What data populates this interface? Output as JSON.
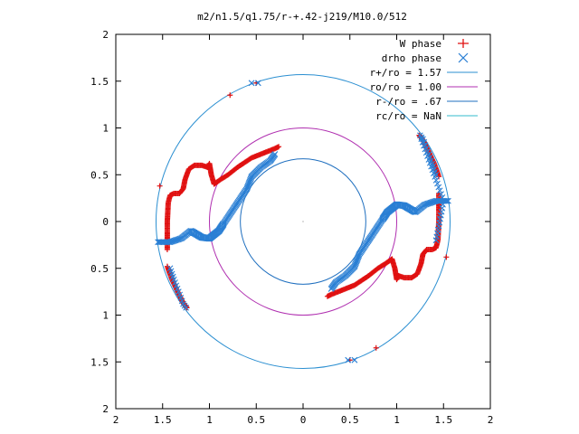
{
  "chart_data": {
    "type": "scatter",
    "title": "m2/n1.5/q1.75/r-+.42-j219/M10.0/512",
    "xlabel": "",
    "ylabel": "",
    "xlim": [
      -2,
      2
    ],
    "ylim": [
      -2,
      2
    ],
    "grid": false,
    "legend_position": "top-right",
    "x_ticks": [
      -2,
      -1.5,
      -1,
      -0.5,
      0,
      0.5,
      1,
      1.5,
      2
    ],
    "y_ticks": [
      -2,
      -1.5,
      -1,
      -0.5,
      0,
      0.5,
      1,
      1.5,
      2
    ],
    "x_tick_labels": [
      "2",
      "1.5",
      "1",
      "0.5",
      "0",
      "0.5",
      "1",
      "1.5",
      "2"
    ],
    "y_tick_labels": [
      "2",
      "1.5",
      "1",
      "0.5",
      "0",
      "0.5",
      "1",
      "1.5",
      "2"
    ],
    "circles": [
      {
        "name": "r+/ro = 1.57",
        "radius": 1.57,
        "color": "#2b8fd1"
      },
      {
        "name": "ro/ro = 1.00",
        "radius": 1.0,
        "color": "#b02fb0"
      },
      {
        "name": "r-/ro = .67",
        "radius": 0.67,
        "color": "#1f6fbf"
      },
      {
        "name": "rc/ro = NaN",
        "radius": null,
        "color": "#33bbcc"
      }
    ],
    "series": [
      {
        "name": "W phase",
        "marker": "plus",
        "color": "#e01010",
        "segments": [
          [
            [
              -1.45,
              -0.3
            ],
            [
              -1.45,
              0
            ],
            [
              -1.44,
              0.2
            ],
            [
              -1.42,
              0.28
            ],
            [
              -1.38,
              0.3
            ],
            [
              -1.32,
              0.3
            ],
            [
              -1.28,
              0.35
            ],
            [
              -1.26,
              0.45
            ],
            [
              -1.22,
              0.56
            ],
            [
              -1.16,
              0.6
            ],
            [
              -1.08,
              0.6
            ],
            [
              -1.02,
              0.58
            ],
            [
              -1.0,
              0.62
            ],
            [
              -0.98,
              0.5
            ],
            [
              -0.95,
              0.4
            ],
            [
              -0.88,
              0.45
            ],
            [
              -0.8,
              0.5
            ],
            [
              -0.7,
              0.58
            ],
            [
              -0.55,
              0.68
            ],
            [
              -0.4,
              0.74
            ],
            [
              -0.3,
              0.78
            ],
            [
              -0.26,
              0.8
            ]
          ],
          [
            [
              1.45,
              0.3
            ],
            [
              1.45,
              0
            ],
            [
              1.44,
              -0.2
            ],
            [
              1.42,
              -0.28
            ],
            [
              1.38,
              -0.3
            ],
            [
              1.32,
              -0.3
            ],
            [
              1.28,
              -0.35
            ],
            [
              1.26,
              -0.45
            ],
            [
              1.22,
              -0.56
            ],
            [
              1.16,
              -0.6
            ],
            [
              1.08,
              -0.6
            ],
            [
              1.02,
              -0.58
            ],
            [
              1.0,
              -0.62
            ],
            [
              0.98,
              -0.5
            ],
            [
              0.95,
              -0.4
            ],
            [
              0.88,
              -0.45
            ],
            [
              0.8,
              -0.5
            ],
            [
              0.7,
              -0.58
            ],
            [
              0.55,
              -0.68
            ],
            [
              0.4,
              -0.74
            ],
            [
              0.3,
              -0.78
            ],
            [
              0.26,
              -0.8
            ]
          ],
          [
            [
              -1.45,
              -0.48
            ],
            [
              -1.4,
              -0.62
            ],
            [
              -1.34,
              -0.75
            ],
            [
              -1.28,
              -0.87
            ],
            [
              -1.24,
              -0.92
            ]
          ],
          [
            [
              1.45,
              0.48
            ],
            [
              1.4,
              0.62
            ],
            [
              1.34,
              0.75
            ],
            [
              1.28,
              0.87
            ],
            [
              1.24,
              0.92
            ]
          ]
        ],
        "extra_points": [
          [
            -0.78,
            1.35
          ],
          [
            -1.53,
            0.38
          ],
          [
            -0.5,
            1.48
          ],
          [
            0.78,
            -1.35
          ],
          [
            1.53,
            -0.38
          ],
          [
            0.5,
            -1.48
          ]
        ]
      },
      {
        "name": "drho phase",
        "marker": "cross",
        "color": "#2a7fd4",
        "segments": [
          [
            [
              -1.55,
              -0.22
            ],
            [
              -1.42,
              -0.22
            ],
            [
              -1.3,
              -0.18
            ],
            [
              -1.2,
              -0.1
            ],
            [
              -1.08,
              -0.17
            ],
            [
              -1.0,
              -0.18
            ],
            [
              -0.9,
              -0.1
            ],
            [
              -0.8,
              0.05
            ],
            [
              -0.6,
              0.35
            ],
            [
              -0.55,
              0.48
            ],
            [
              -0.45,
              0.58
            ],
            [
              -0.35,
              0.65
            ],
            [
              -0.3,
              0.72
            ]
          ],
          [
            [
              1.55,
              0.22
            ],
            [
              1.42,
              0.22
            ],
            [
              1.3,
              0.18
            ],
            [
              1.2,
              0.1
            ],
            [
              1.08,
              0.17
            ],
            [
              1.0,
              0.18
            ],
            [
              0.9,
              0.1
            ],
            [
              0.8,
              -0.05
            ],
            [
              0.6,
              -0.35
            ],
            [
              0.55,
              -0.48
            ],
            [
              0.45,
              -0.58
            ],
            [
              0.35,
              -0.65
            ],
            [
              0.3,
              -0.72
            ]
          ],
          [
            [
              -1.42,
              -0.5
            ],
            [
              -1.38,
              -0.62
            ],
            [
              -1.33,
              -0.75
            ],
            [
              -1.28,
              -0.88
            ],
            [
              -1.25,
              -0.92
            ]
          ],
          [
            [
              1.42,
              0.5
            ],
            [
              1.38,
              0.62
            ],
            [
              1.33,
              0.75
            ],
            [
              1.28,
              0.88
            ],
            [
              1.25,
              0.92
            ],
            [
              1.5,
              0.22
            ],
            [
              1.45,
              -0.05
            ],
            [
              1.42,
              -0.2
            ]
          ]
        ],
        "extra_points": [
          [
            -0.55,
            1.48
          ],
          [
            -0.48,
            1.48
          ],
          [
            0.48,
            -1.48
          ],
          [
            0.55,
            -1.48
          ]
        ]
      }
    ]
  }
}
